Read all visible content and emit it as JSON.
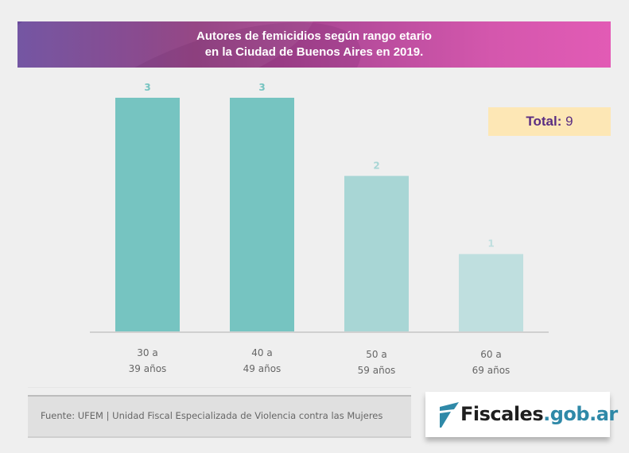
{
  "banner": {
    "title_line1": "Autores de femicidios según rango etario",
    "title_line2": "en la Ciudad de Buenos Aires en 2019."
  },
  "total": {
    "label": "Total:",
    "value": "9"
  },
  "chart_data": {
    "type": "bar",
    "title": "Autores de femicidios según rango etario en la Ciudad de Buenos Aires en 2019.",
    "xlabel": "",
    "ylabel": "",
    "categories": [
      [
        "30 a",
        "39 años"
      ],
      [
        "40 a",
        "49 años"
      ],
      [
        "50 a",
        "59 años"
      ],
      [
        "60 a",
        "69 años"
      ]
    ],
    "values": [
      3,
      3,
      2,
      1
    ],
    "ylim": [
      0,
      3
    ],
    "grid": false,
    "data_labels": [
      "3",
      "3",
      "2",
      "1"
    ],
    "bar_colors": [
      "#76c4c1",
      "#76c4c1",
      "#a8d6d5",
      "#bfdfdf"
    ],
    "label_colors": [
      "#76c4c1",
      "#76c4c1",
      "#a8d6d5",
      "#bfdfdf"
    ]
  },
  "footer": {
    "source": "Fuente: UFEM | Unidad Fiscal Especializada de Violencia contra las Mujeres",
    "logo_dark": "Fiscales",
    "logo_blue": ".gob.ar"
  },
  "colors": {
    "logo_blue": "#2f89a8",
    "total_text": "#5a2d82",
    "total_bg": "#fde7b5"
  }
}
